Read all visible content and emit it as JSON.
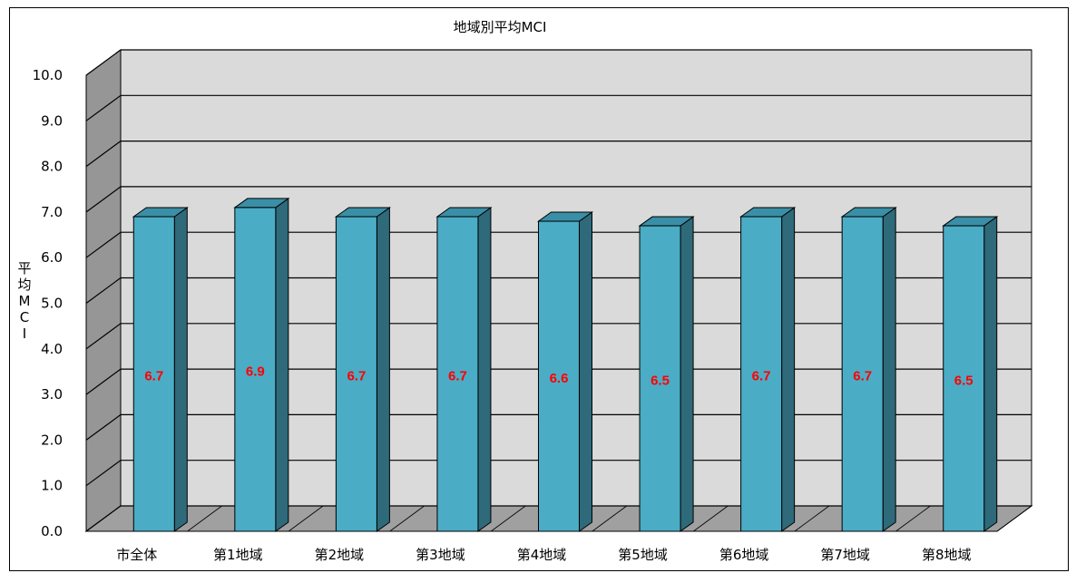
{
  "chart_data": {
    "type": "bar",
    "title": "地域別平均MCI",
    "xlabel": "",
    "ylabel": "平均MCI",
    "categories": [
      "市全体",
      "第1地域",
      "第2地域",
      "第3地域",
      "第4地域",
      "第5地域",
      "第6地域",
      "第7地域",
      "第8地域"
    ],
    "values": [
      6.7,
      6.9,
      6.7,
      6.7,
      6.6,
      6.5,
      6.7,
      6.7,
      6.5
    ],
    "data_labels": [
      "6.7",
      "6.9",
      "6.7",
      "6.7",
      "6.6",
      "6.5",
      "6.7",
      "6.7",
      "6.5"
    ],
    "ylim": [
      0,
      10
    ],
    "yticks": [
      "0.0",
      "1.0",
      "2.0",
      "3.0",
      "4.0",
      "5.0",
      "6.0",
      "7.0",
      "8.0",
      "9.0",
      "10.0"
    ],
    "grid": true,
    "legend": "none",
    "style": "3d",
    "colors": {
      "bar_front": "#4BACC6",
      "bar_side": "#2E6A7A",
      "bar_top": "#3A8FA6",
      "back_wall": "#DADADA",
      "side_wall": "#969696",
      "floor": "#A0A0A0",
      "data_label": "#FF0000"
    }
  }
}
